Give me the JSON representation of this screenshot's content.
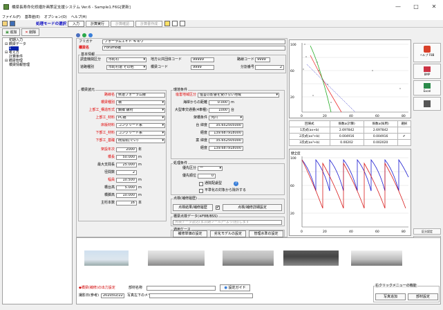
{
  "window": {
    "title": "橋梁長寿命化修繕計画策定支援システム Ver.6 - Sample1.F6G[更新]",
    "min": "—",
    "max": "□",
    "close": "✕"
  },
  "menu": [
    "ファイル(F)",
    "基準値(E)",
    "オプション(O)",
    "ヘルプ(H)"
  ],
  "toolbar": {
    "mode": "処理モードの選択",
    "tabs": [
      "入力",
      "計算実行",
      "計算確認",
      "計算書作成"
    ]
  },
  "left": {
    "add": "追加",
    "delete": "削除",
    "tree": [
      "初期入力",
      "橋梁データ",
      "考え方",
      "計算条件",
      "橋梁管理",
      "橋梁情報管理"
    ],
    "selected": "1"
  },
  "form": {
    "furigana_label": "フリガナ",
    "furigana": "フォーラムエイト キョウ",
    "name_label": "橋梁名",
    "name": "Forum8橋",
    "basic_title": "基本情報",
    "pref_label": "調査機関区分",
    "pref": "市町村",
    "road_label": "道路種別",
    "road": "市町村道 その他",
    "code_label": "地方公共団体コード",
    "code": "99999",
    "route_label": "路線コード",
    "route": "9999",
    "bridge_code_label": "橋梁コード",
    "bridge_code": "9999",
    "div_label": "分割番号",
    "div": "2",
    "bridge_info": "橋梁諸元",
    "spec": [
      {
        "label": "路線名",
        "value": "県道フォーラム線",
        "red": true,
        "type": "text"
      },
      {
        "label": "橋梁種別",
        "value": "橋",
        "red": true,
        "type": "select"
      },
      {
        "label": "上部工_構造形式",
        "value": "鋼橋 鈑桁",
        "red": true,
        "type": "select"
      },
      {
        "label": "上部工_材料",
        "value": "PC橋",
        "red": true,
        "type": "select"
      },
      {
        "label": "床版材料",
        "value": "コンクリート系",
        "red": true,
        "type": "select"
      },
      {
        "label": "下部工_材料",
        "value": "コンクリート系",
        "red": true,
        "type": "select"
      },
      {
        "label": "下部工_基礎",
        "value": "既成杭(ぐい)",
        "red": true,
        "type": "select"
      }
    ],
    "nums": [
      {
        "label": "架設年次",
        "value": "2000",
        "unit": "年",
        "red": true
      },
      {
        "label": "橋長",
        "value": "50.000",
        "unit": "m",
        "red": true
      },
      {
        "label": "最大支間長",
        "value": "25.000",
        "unit": "m",
        "red": false
      },
      {
        "label": "径間数",
        "value": "2",
        "unit": "",
        "red": false
      },
      {
        "label": "幅員",
        "value": "10.500",
        "unit": "m",
        "red": true
      },
      {
        "label": "橋台高",
        "value": "5.000",
        "unit": "m",
        "red": false
      },
      {
        "label": "橋脚高",
        "value": "10.000",
        "unit": "m",
        "red": false
      },
      {
        "label": "主桁本数",
        "value": "16",
        "unit": "本",
        "red": false
      }
    ],
    "env_title": "環境条件",
    "env_area_label": "塩害地域区分",
    "env_area": "塩害の影響を受けない地域",
    "sea_label": "海岸からの距離",
    "sea": "0.000",
    "sea_unit": "m",
    "traffic_label": "大型車交通量(4車種)",
    "traffic": "1000",
    "traffic_unit": "台",
    "cross_label": "架橋条件",
    "cross": "河川",
    "lat1_label": "台 緯度",
    "lat1": "35.652505000",
    "lon1_label": "経度",
    "lon1": "139.687918000",
    "lat2_label": "案 緯度",
    "lat2": "35.652505000",
    "lon2_label": "経度",
    "lon2": "139.687918000",
    "calc_title": "処理条件",
    "prio_label": "優先区分",
    "prio": "一",
    "prio2_label": "優先順位",
    "prio2": "0",
    "cb1": "通院配慮型",
    "cb2": "平準化の対象から除外する",
    "insp_title": "点検(補修履歴)",
    "insp_btn1": "点検結果/補修履歴",
    "insp_btn2": "点検/補修詳細設定",
    "data_title": "橋梁点検データ(※F8B/BSS)",
    "data_note": "点検データ読込(ま次期ツール)一より(別)します",
    "apply_title": "適用ケース",
    "apply_btns": [
      "補修単価の設定",
      "劣化モデルの設定",
      "管理水準の設定"
    ]
  },
  "chart1": {
    "yticks": [
      "100",
      "90",
      "80",
      "70",
      "60",
      "50",
      "40",
      "30",
      "20",
      "10",
      "0"
    ],
    "xticks": [
      "0",
      "10",
      "20",
      "30",
      "40",
      "50",
      "60",
      "70",
      "80"
    ]
  },
  "table": {
    "headers": [
      "回帰式",
      "係数a(計算)",
      "係数a(採用)",
      "選択"
    ],
    "rows": [
      [
        "1次式(ax+b)",
        "2.697842",
        "2.697842",
        ""
      ],
      [
        "2次式(ax²+b)",
        "0.004916",
        "0.004916",
        "✔"
      ],
      [
        "3次式(ax³+b)",
        "0.00202",
        "0.002020",
        ""
      ]
    ]
  },
  "chart2": {
    "title": "健全度",
    "yticks": [
      "100",
      "90",
      "80",
      "70",
      "60",
      "50",
      "40",
      "30",
      "20",
      "10",
      "0"
    ],
    "xticks": [
      "0",
      "10",
      "20",
      "30",
      "40",
      "50",
      "60",
      "70",
      "80"
    ]
  },
  "right": [
    "ヘルプ F8B",
    "BMP",
    "Excel",
    "印刷"
  ],
  "right_bottom": [
    "区分設定",
    "用紙文書"
  ],
  "bottom": {
    "photo_label": "◆橋梁(補修)の出力設定",
    "photo_name_label": "部材名称",
    "guide": "設定ガイド",
    "date_label": "撮影日(参考)",
    "date": "2020/02/22",
    "memo_label": "写真左下のメモ",
    "opt_title": "右クリックメニューの機能",
    "add_photo": "写真追加",
    "del_photo": "部材設定"
  }
}
